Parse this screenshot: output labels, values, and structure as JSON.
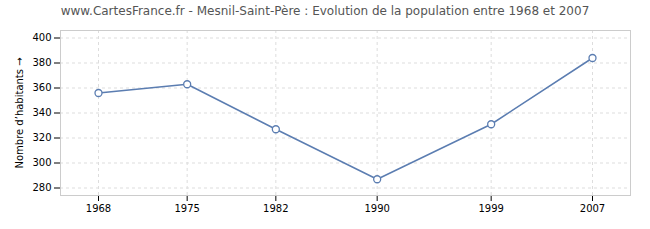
{
  "chart_data": {
    "type": "line",
    "title": "www.CartesFrance.fr - Mesnil-Saint-Père : Evolution de la population entre 1968 et 2007",
    "ylabel": "Nombre d’habitants",
    "x": [
      1968,
      1975,
      1982,
      1990,
      1999,
      2007
    ],
    "values": [
      356,
      363,
      327,
      287,
      331,
      384
    ],
    "color": "#5b7db1",
    "marker": "circle",
    "xlim": [
      1965,
      2010
    ],
    "xticks": [
      1968,
      1975,
      1982,
      1990,
      1999,
      2007
    ],
    "ylim": [
      274,
      406
    ],
    "yticks": [
      280,
      300,
      320,
      340,
      360,
      380,
      400
    ],
    "grid": true
  }
}
